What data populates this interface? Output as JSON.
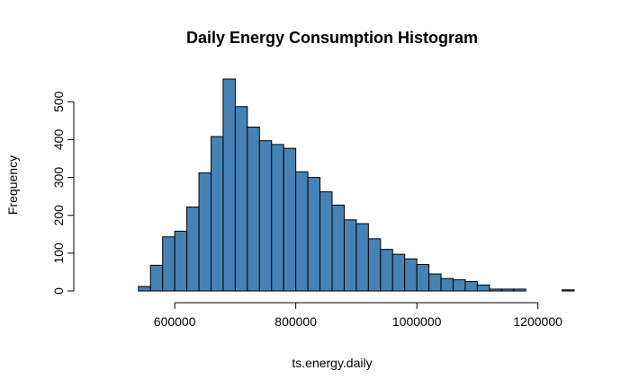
{
  "chart_data": {
    "type": "bar",
    "title": "Daily Energy Consumption Histogram",
    "xlabel": "ts.energy.daily",
    "ylabel": "Frequency",
    "bar_color": "#4682B4",
    "bin_width": 20000,
    "xlim": [
      460000,
      1260000
    ],
    "ylim": [
      0,
      560
    ],
    "x_ticks": [
      600000,
      800000,
      1000000,
      1200000
    ],
    "x_tick_labels": [
      "600000",
      "800000",
      "1000000",
      "1200000"
    ],
    "y_ticks": [
      0,
      100,
      200,
      300,
      400,
      500
    ],
    "y_tick_labels": [
      "0",
      "100",
      "200",
      "300",
      "400",
      "500"
    ],
    "bins": [
      {
        "start": 540000,
        "count": 12
      },
      {
        "start": 560000,
        "count": 68
      },
      {
        "start": 580000,
        "count": 143
      },
      {
        "start": 600000,
        "count": 158
      },
      {
        "start": 620000,
        "count": 222
      },
      {
        "start": 640000,
        "count": 312
      },
      {
        "start": 660000,
        "count": 408
      },
      {
        "start": 680000,
        "count": 560
      },
      {
        "start": 700000,
        "count": 487
      },
      {
        "start": 720000,
        "count": 433
      },
      {
        "start": 740000,
        "count": 397
      },
      {
        "start": 760000,
        "count": 387
      },
      {
        "start": 780000,
        "count": 377
      },
      {
        "start": 800000,
        "count": 315
      },
      {
        "start": 820000,
        "count": 300
      },
      {
        "start": 840000,
        "count": 262
      },
      {
        "start": 860000,
        "count": 227
      },
      {
        "start": 880000,
        "count": 188
      },
      {
        "start": 900000,
        "count": 178
      },
      {
        "start": 920000,
        "count": 138
      },
      {
        "start": 940000,
        "count": 110
      },
      {
        "start": 960000,
        "count": 97
      },
      {
        "start": 980000,
        "count": 85
      },
      {
        "start": 1000000,
        "count": 70
      },
      {
        "start": 1020000,
        "count": 45
      },
      {
        "start": 1040000,
        "count": 33
      },
      {
        "start": 1060000,
        "count": 30
      },
      {
        "start": 1080000,
        "count": 25
      },
      {
        "start": 1100000,
        "count": 16
      },
      {
        "start": 1120000,
        "count": 5
      },
      {
        "start": 1140000,
        "count": 5
      },
      {
        "start": 1160000,
        "count": 5
      },
      {
        "start": 1180000,
        "count": 0
      },
      {
        "start": 1200000,
        "count": 0
      },
      {
        "start": 1220000,
        "count": 0
      },
      {
        "start": 1240000,
        "count": 3
      }
    ],
    "grid": false,
    "legend": "none"
  }
}
